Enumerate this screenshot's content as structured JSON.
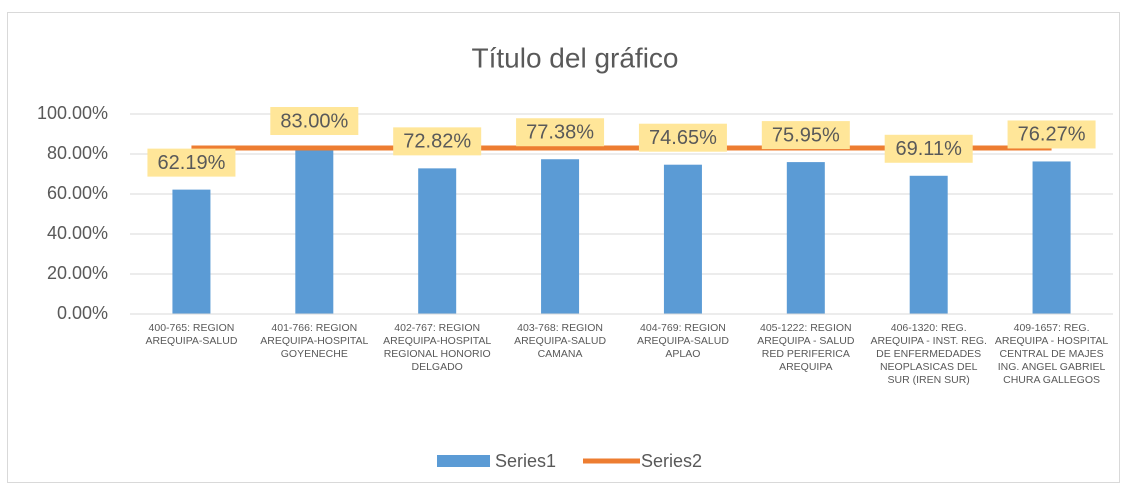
{
  "chart_data": {
    "type": "bar",
    "title": "Título del gráfico",
    "categories": [
      "400-765: REGION AREQUIPA-SALUD",
      "401-766: REGION AREQUIPA-HOSPITAL GOYENECHE",
      "402-767: REGION AREQUIPA-HOSPITAL REGIONAL HONORIO DELGADO",
      "403-768: REGION AREQUIPA-SALUD CAMANA",
      "404-769: REGION AREQUIPA-SALUD APLAO",
      "405-1222: REGION AREQUIPA - SALUD RED PERIFERICA AREQUIPA",
      "406-1320: REG. AREQUIPA - INST. REG. DE ENFERMEDADES NEOPLASICAS DEL SUR (IREN SUR)",
      "409-1657: REG. AREQUIPA - HOSPITAL CENTRAL DE MAJES ING. ANGEL GABRIEL CHURA GALLEGOS"
    ],
    "series": [
      {
        "name": "Series1",
        "type": "bar",
        "color": "#5b9bd5",
        "values": [
          62.19,
          83.0,
          72.82,
          77.38,
          74.65,
          75.95,
          69.11,
          76.27
        ],
        "value_labels": [
          "62.19%",
          "83.00%",
          "72.82%",
          "77.38%",
          "74.65%",
          "75.95%",
          "69.11%",
          "76.27%"
        ]
      },
      {
        "name": "Series2",
        "type": "line",
        "color": "#ed7d31",
        "values": [
          83,
          83,
          83,
          83,
          83,
          83,
          83,
          83
        ]
      }
    ],
    "ylim": [
      0,
      100
    ],
    "yticks": [
      {
        "value": 0,
        "label": "0.00%"
      },
      {
        "value": 20,
        "label": "20.00%"
      },
      {
        "value": 40,
        "label": "40.00%"
      },
      {
        "value": 60,
        "label": "60.00%"
      },
      {
        "value": 80,
        "label": "80.00%"
      },
      {
        "value": 100,
        "label": "100.00%"
      }
    ],
    "grid": true,
    "legend": "bottom"
  }
}
